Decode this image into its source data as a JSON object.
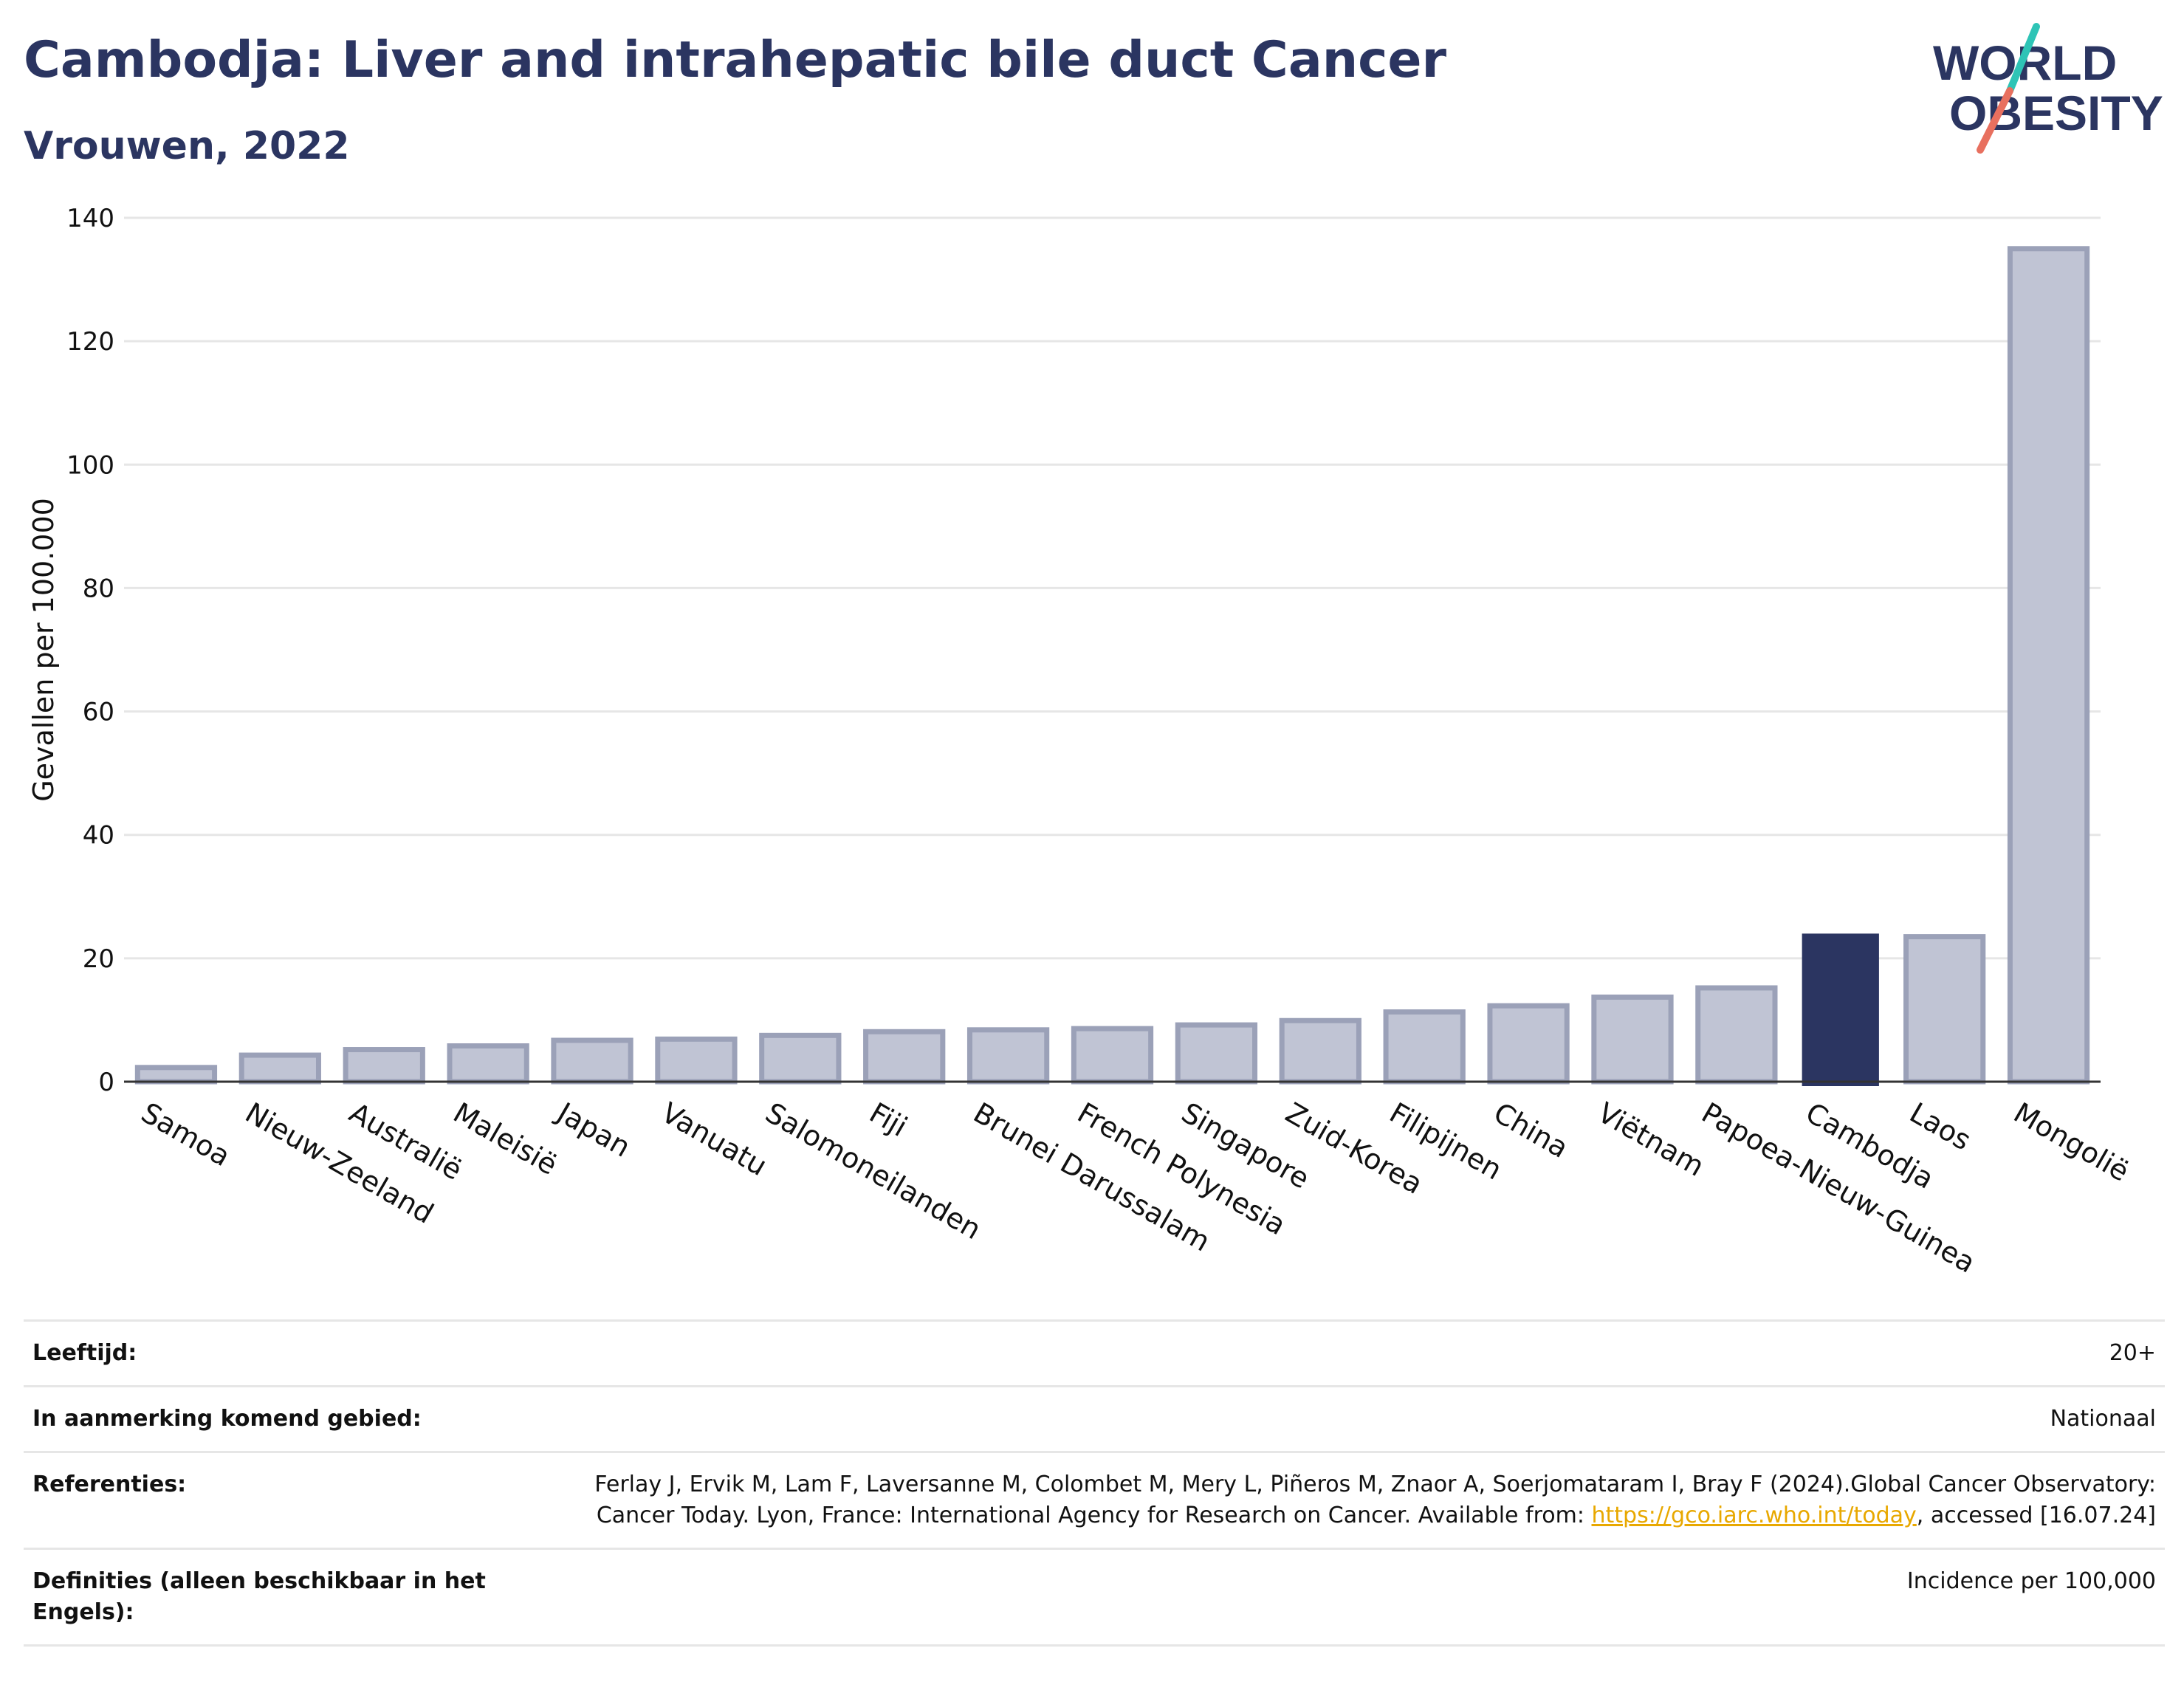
{
  "header": {
    "title": "Cambodja: Liver and intrahepatic bile duct Cancer",
    "subtitle": "Vrouwen, 2022"
  },
  "logo": {
    "line1": "WORLD",
    "line2": "OBESITY"
  },
  "colors": {
    "highlight": "#2b3561",
    "bar": "#c0c4d4",
    "bar_edge": "#9ba1b8",
    "grid": "#e6e6e6",
    "slash_teal": "#2ec4b6",
    "slash_coral": "#e8705f"
  },
  "chart_data": {
    "type": "bar",
    "ylabel": "Gevallen per 100.000",
    "ylim": [
      0,
      140
    ],
    "yticks": [
      0,
      20,
      40,
      60,
      80,
      100,
      120,
      140
    ],
    "grid": true,
    "highlight": "Cambodja",
    "categories": [
      "Samoa",
      "Nieuw-Zeeland",
      "Australië",
      "Maleisië",
      "Japan",
      "Vanuatu",
      "Salomoneilanden",
      "Fiji",
      "Brunei Darussalam",
      "French Polynesia",
      "Singapore",
      "Zuid-Korea",
      "Filipijnen",
      "China",
      "Viëtnam",
      "Papoea-Nieuw-Guinea",
      "Cambodja",
      "Laos",
      "Mongolië"
    ],
    "values": [
      2.3,
      4.3,
      5.2,
      5.8,
      6.7,
      6.9,
      7.5,
      8.1,
      8.4,
      8.6,
      9.2,
      9.9,
      11.3,
      12.3,
      13.7,
      15.2,
      24.0,
      23.5,
      135.0
    ]
  },
  "info": {
    "rows": [
      {
        "key": "Leeftijd:",
        "value": "20+"
      },
      {
        "key": "In aanmerking komend gebied:",
        "value": "Nationaal"
      },
      {
        "key": "Referenties:",
        "value": "Ferlay J, Ervik M, Lam F, Laversanne M, Colombet M, Mery L, Piñeros M, Znaor A, Soerjomataram I, Bray F (2024).Global Cancer Observatory: Cancer Today. Lyon, France: International Agency for Research on Cancer. Available from: ",
        "link": "https://gco.iarc.who.int/today",
        "suffix": ", accessed [16.07.24]"
      },
      {
        "key": "Definities (alleen beschikbaar in het Engels):",
        "value": "Incidence per 100,000"
      }
    ]
  }
}
